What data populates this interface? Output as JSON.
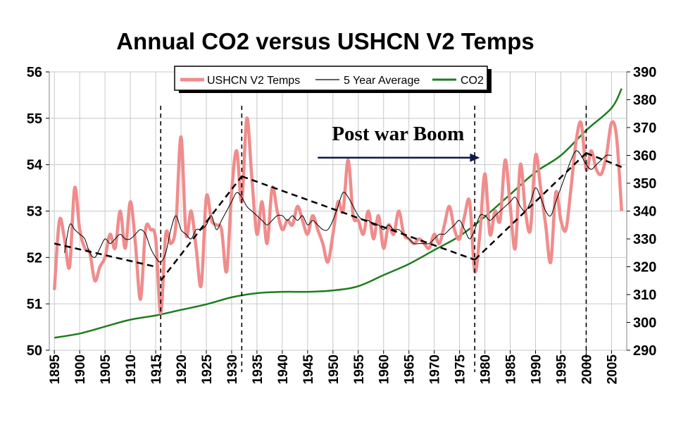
{
  "chart_data": {
    "type": "line",
    "title": "Annual CO2 versus USHCN V2 Temps",
    "x_ticks": [
      "1895",
      "1900",
      "1905",
      "1910",
      "1915",
      "1920",
      "1925",
      "1930",
      "1935",
      "1940",
      "1945",
      "1950",
      "1955",
      "1960",
      "1965",
      "1970",
      "1975",
      "1980",
      "1985",
      "1990",
      "1995",
      "2000",
      "2005"
    ],
    "y_left": {
      "min": 50,
      "max": 56,
      "ticks": [
        "50",
        "51",
        "52",
        "53",
        "54",
        "55",
        "56"
      ]
    },
    "y_right": {
      "min": 290,
      "max": 390,
      "ticks": [
        "290",
        "300",
        "310",
        "320",
        "330",
        "340",
        "350",
        "360",
        "370",
        "380",
        "390"
      ]
    },
    "grid": true,
    "legend": {
      "position": "top",
      "entries": [
        "USHCN V2 Temps",
        "5 Year Average",
        "CO2"
      ]
    },
    "colors": {
      "temps": "#f08c8c",
      "average": "#000000",
      "co2": "#1e7d1e",
      "arrow": "#0c1a4d"
    },
    "series": [
      {
        "name": "USHCN V2 Temps",
        "axis": "left",
        "x": [
          1895,
          1896,
          1897,
          1898,
          1899,
          1900,
          1901,
          1902,
          1903,
          1904,
          1905,
          1906,
          1907,
          1908,
          1909,
          1910,
          1911,
          1912,
          1913,
          1914,
          1915,
          1916,
          1917,
          1918,
          1919,
          1920,
          1921,
          1922,
          1923,
          1924,
          1925,
          1926,
          1927,
          1928,
          1929,
          1930,
          1931,
          1932,
          1933,
          1934,
          1935,
          1936,
          1937,
          1938,
          1939,
          1940,
          1941,
          1942,
          1943,
          1944,
          1945,
          1946,
          1947,
          1948,
          1949,
          1950,
          1951,
          1952,
          1953,
          1954,
          1955,
          1956,
          1957,
          1958,
          1959,
          1960,
          1961,
          1962,
          1963,
          1964,
          1965,
          1966,
          1967,
          1968,
          1969,
          1970,
          1971,
          1972,
          1973,
          1974,
          1975,
          1976,
          1977,
          1978,
          1979,
          1980,
          1981,
          1982,
          1983,
          1984,
          1985,
          1986,
          1987,
          1988,
          1989,
          1990,
          1991,
          1992,
          1993,
          1994,
          1995,
          1996,
          1997,
          1998,
          1999,
          2000,
          2001,
          2002,
          2003,
          2004,
          2005,
          2006,
          2007
        ],
        "values": [
          51.3,
          52.8,
          52.4,
          51.8,
          53.5,
          52.6,
          52.2,
          52.1,
          51.5,
          51.8,
          52.0,
          52.5,
          52.2,
          53.0,
          52.2,
          53.2,
          52.3,
          51.1,
          52.6,
          52.6,
          52.4,
          50.8,
          52.5,
          52.3,
          52.7,
          54.6,
          52.5,
          53.0,
          52.2,
          51.4,
          53.3,
          52.8,
          52.7,
          52.6,
          51.7,
          53.4,
          54.3,
          53.2,
          55.0,
          53.7,
          52.5,
          53.2,
          52.3,
          53.5,
          53.0,
          52.6,
          52.8,
          52.7,
          53.1,
          52.8,
          52.5,
          52.9,
          52.6,
          52.3,
          51.9,
          52.5,
          53.2,
          53.0,
          54.1,
          52.9,
          52.8,
          52.5,
          53.0,
          52.4,
          52.9,
          52.2,
          52.7,
          52.5,
          53.0,
          52.5,
          52.4,
          52.3,
          52.4,
          52.3,
          52.2,
          52.5,
          52.3,
          52.7,
          53.1,
          52.6,
          52.4,
          52.9,
          53.2,
          51.7,
          52.5,
          53.8,
          52.5,
          53.0,
          52.8,
          54.1,
          53.1,
          52.2,
          54.0,
          53.0,
          52.6,
          54.2,
          53.5,
          52.7,
          51.9,
          53.4,
          52.8,
          52.6,
          53.5,
          54.5,
          54.9,
          53.9,
          54.3,
          53.9,
          53.8,
          54.2,
          54.9,
          54.6,
          53.0
        ]
      },
      {
        "name": "5 Year Average",
        "axis": "left",
        "x": [
          1897,
          1898,
          1899,
          1900,
          1901,
          1902,
          1903,
          1904,
          1905,
          1906,
          1907,
          1908,
          1909,
          1910,
          1911,
          1912,
          1913,
          1914,
          1915,
          1916,
          1917,
          1918,
          1919,
          1920,
          1921,
          1922,
          1923,
          1924,
          1925,
          1926,
          1927,
          1928,
          1929,
          1930,
          1931,
          1932,
          1933,
          1934,
          1935,
          1936,
          1937,
          1938,
          1939,
          1940,
          1941,
          1942,
          1943,
          1944,
          1945,
          1946,
          1947,
          1948,
          1949,
          1950,
          1951,
          1952,
          1953,
          1954,
          1955,
          1956,
          1957,
          1958,
          1959,
          1960,
          1961,
          1962,
          1963,
          1964,
          1965,
          1966,
          1967,
          1968,
          1969,
          1970,
          1971,
          1972,
          1973,
          1974,
          1975,
          1976,
          1977,
          1978,
          1979,
          1980,
          1981,
          1982,
          1983,
          1984,
          1985,
          1986,
          1987,
          1988,
          1989,
          1990,
          1991,
          1992,
          1993,
          1994,
          1995,
          1996,
          1997,
          1998,
          1999,
          2000,
          2001,
          2002,
          2003,
          2004,
          2005
        ],
        "values": [
          52.1,
          52.7,
          52.6,
          52.5,
          52.4,
          52.1,
          52.0,
          52.2,
          52.4,
          52.3,
          52.4,
          52.5,
          52.4,
          52.4,
          52.5,
          52.6,
          52.5,
          52.2,
          52.0,
          51.9,
          52.1,
          52.6,
          52.9,
          52.6,
          52.5,
          52.4,
          52.6,
          52.6,
          52.7,
          52.9,
          52.6,
          52.8,
          53.0,
          53.2,
          53.4,
          53.3,
          53.1,
          53.0,
          52.9,
          52.8,
          52.7,
          52.8,
          52.9,
          52.9,
          52.8,
          52.9,
          52.8,
          52.9,
          52.7,
          52.8,
          52.7,
          52.6,
          52.6,
          52.8,
          53.1,
          53.4,
          53.3,
          53.1,
          52.9,
          52.8,
          52.8,
          52.7,
          52.7,
          52.6,
          52.7,
          52.6,
          52.6,
          52.5,
          52.4,
          52.3,
          52.3,
          52.3,
          52.3,
          52.4,
          52.5,
          52.5,
          52.6,
          52.7,
          52.8,
          52.6,
          52.4,
          52.6,
          52.9,
          52.9,
          52.8,
          52.9,
          53.0,
          53.1,
          53.2,
          53.3,
          53.1,
          53.0,
          53.2,
          53.5,
          53.3,
          53.0,
          52.9,
          53.2,
          53.5,
          53.8,
          54.1,
          54.3,
          54.2,
          54.0,
          53.9,
          54.0,
          54.1,
          54.2,
          54.2
        ]
      },
      {
        "name": "CO2",
        "axis": "right",
        "x": [
          1895,
          1900,
          1905,
          1910,
          1915,
          1920,
          1925,
          1930,
          1935,
          1940,
          1945,
          1950,
          1955,
          1960,
          1965,
          1970,
          1975,
          1980,
          1985,
          1990,
          1995,
          2000,
          2005,
          2007
        ],
        "values": [
          294.5,
          296.0,
          298.5,
          301.0,
          302.5,
          304.5,
          306.5,
          309.0,
          310.5,
          311.0,
          311.0,
          311.5,
          313.0,
          317.0,
          321.0,
          326.0,
          331.0,
          338.0,
          346.0,
          354.0,
          360.0,
          369.0,
          377.0,
          384.0
        ]
      }
    ],
    "trend_lines": [
      {
        "from": [
          1895,
          52.3
        ],
        "to": [
          1915,
          51.8
        ]
      },
      {
        "from": [
          1916,
          51.5
        ],
        "to": [
          1932,
          53.75
        ]
      },
      {
        "from": [
          1932,
          53.75
        ],
        "to": [
          1978,
          51.95
        ]
      },
      {
        "from": [
          1978,
          51.95
        ],
        "to": [
          2000,
          54.25
        ]
      },
      {
        "from": [
          2000,
          54.25
        ],
        "to": [
          2007,
          53.95
        ]
      }
    ],
    "vertical_markers": [
      1916,
      1932,
      1978,
      2000
    ],
    "annotations": [
      {
        "text": "Post war Boom",
        "arrow_from": [
          1947,
          54.15
        ],
        "arrow_to": [
          1979,
          54.15
        ]
      }
    ]
  }
}
